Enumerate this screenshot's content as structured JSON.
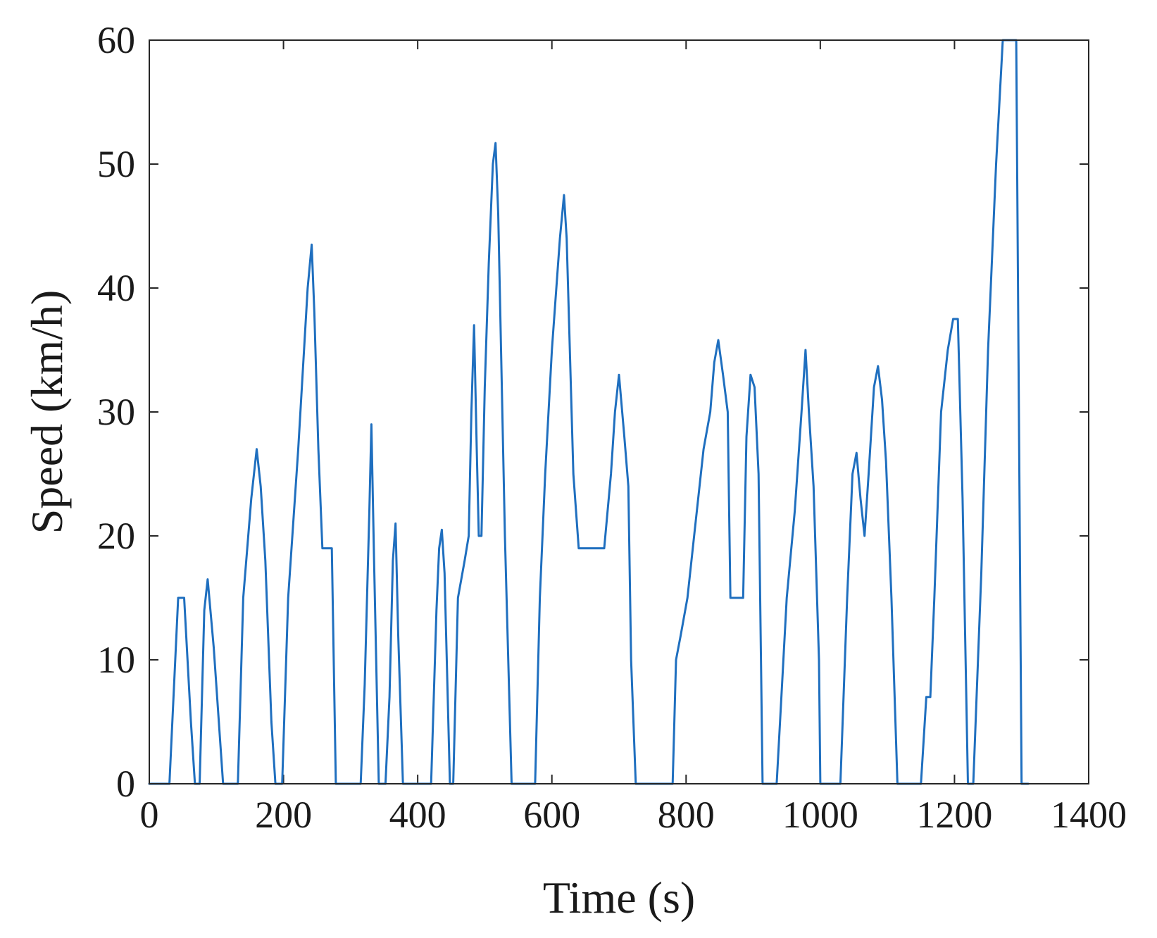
{
  "chart_data": {
    "type": "line",
    "title": "",
    "xlabel": "Time (s)",
    "ylabel": "Speed (km/h)",
    "xlim": [
      0,
      1400
    ],
    "ylim": [
      0,
      60
    ],
    "xticks": [
      0,
      200,
      400,
      600,
      800,
      1000,
      1200,
      1400
    ],
    "yticks": [
      0,
      10,
      20,
      30,
      40,
      50,
      60
    ],
    "xtick_labels": [
      "0",
      "200",
      "400",
      "600",
      "800",
      "1000",
      "1200",
      "1400"
    ],
    "ytick_labels": [
      "0",
      "10",
      "20",
      "30",
      "40",
      "50",
      "60"
    ],
    "grid": false,
    "legend": "none",
    "series": [
      {
        "color": "#1f6fbf",
        "x": [
          0,
          30,
          43,
          52,
          62,
          68,
          75,
          82,
          87,
          96,
          110,
          132,
          140,
          152,
          160,
          166,
          173,
          182,
          188,
          198,
          207,
          222,
          236,
          242,
          246,
          252,
          258,
          266,
          272,
          278,
          315,
          321,
          328,
          331,
          335,
          342,
          352,
          358,
          363,
          367,
          371,
          378,
          382,
          420,
          428,
          432,
          436,
          440,
          448,
          453,
          460,
          470,
          476,
          480,
          484,
          488,
          491,
          495,
          500,
          506,
          512,
          516,
          520,
          530,
          540,
          575,
          582,
          590,
          600,
          612,
          618,
          622,
          632,
          640,
          648,
          670,
          678,
          688,
          694,
          700,
          708,
          714,
          718,
          725,
          780,
          785,
          792,
          802,
          812,
          826,
          836,
          842,
          848,
          855,
          862,
          866,
          880,
          885,
          890,
          896,
          902,
          908,
          914,
          935,
          942,
          950,
          962,
          972,
          978,
          983,
          990,
          998,
          1000,
          1030,
          1040,
          1048,
          1054,
          1060,
          1066,
          1072,
          1080,
          1086,
          1092,
          1098,
          1106,
          1115,
          1150,
          1158,
          1164,
          1170,
          1180,
          1190,
          1198,
          1205,
          1212,
          1220,
          1228,
          1240,
          1250,
          1262,
          1272,
          1282,
          1292,
          1300,
          1310
        ],
        "y": [
          0,
          0,
          15,
          15,
          5,
          0,
          0,
          14,
          16.5,
          11,
          0,
          0,
          15,
          23,
          27,
          24,
          18,
          5,
          0,
          0,
          15,
          27,
          40,
          43.5,
          38,
          27,
          19,
          19,
          19,
          0,
          0,
          8,
          22,
          29,
          18,
          0,
          0,
          7,
          18,
          21,
          12,
          0,
          0,
          0,
          14,
          19,
          20.5,
          17,
          0,
          0,
          15,
          18,
          20,
          30,
          37,
          27,
          20,
          20,
          32,
          42,
          50,
          51.7,
          46,
          20,
          0,
          0,
          15,
          25,
          35,
          44,
          47.5,
          44,
          25,
          19,
          19,
          19,
          19,
          25,
          30,
          33,
          28,
          24,
          10,
          0,
          0,
          10,
          12,
          15,
          20,
          27,
          30,
          34,
          35.8,
          33,
          30,
          15,
          15,
          15,
          28,
          33,
          32,
          25,
          0,
          0,
          7,
          15,
          22,
          30,
          35,
          30,
          24,
          10,
          0,
          0,
          15,
          25,
          26.7,
          23,
          20,
          25,
          32,
          33.7,
          31,
          26,
          15,
          0,
          0,
          7,
          7,
          15,
          30,
          35,
          37.5,
          37.5,
          23,
          0,
          0,
          17,
          35,
          50,
          60,
          60,
          60,
          0,
          0
        ]
      }
    ]
  }
}
